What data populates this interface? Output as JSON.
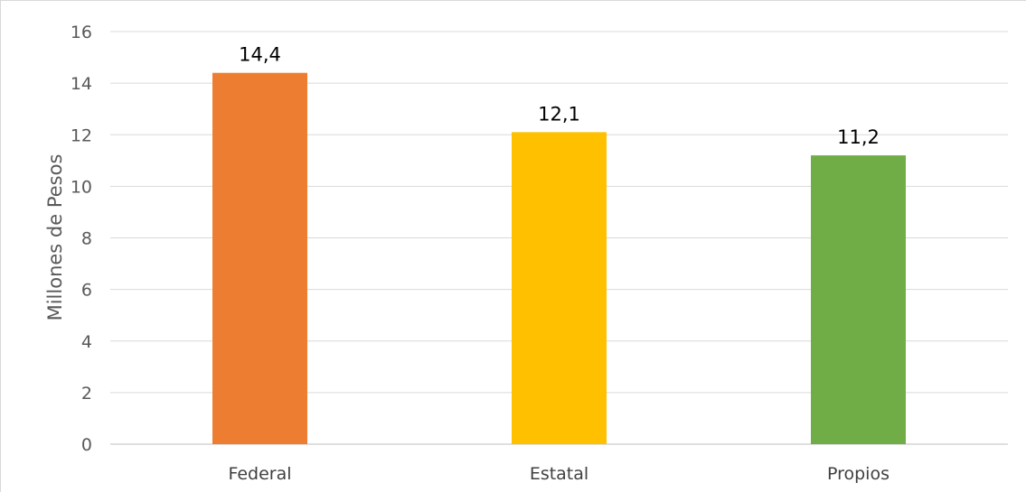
{
  "chart_data": {
    "type": "bar",
    "categories": [
      "Federal",
      "Estatal",
      "Propios"
    ],
    "values": [
      14.4,
      12.1,
      11.2
    ],
    "data_labels": [
      "14,4",
      "12,1",
      "11,2"
    ],
    "bar_colors": [
      "#ED7D31",
      "#FFC000",
      "#70AD47"
    ],
    "title": "",
    "xlabel": "",
    "ylabel": "Millones de Pesos",
    "ylim": [
      0,
      16
    ],
    "yticks": [
      0,
      2,
      4,
      6,
      8,
      10,
      12,
      14,
      16
    ],
    "grid": true,
    "legend": "none"
  }
}
